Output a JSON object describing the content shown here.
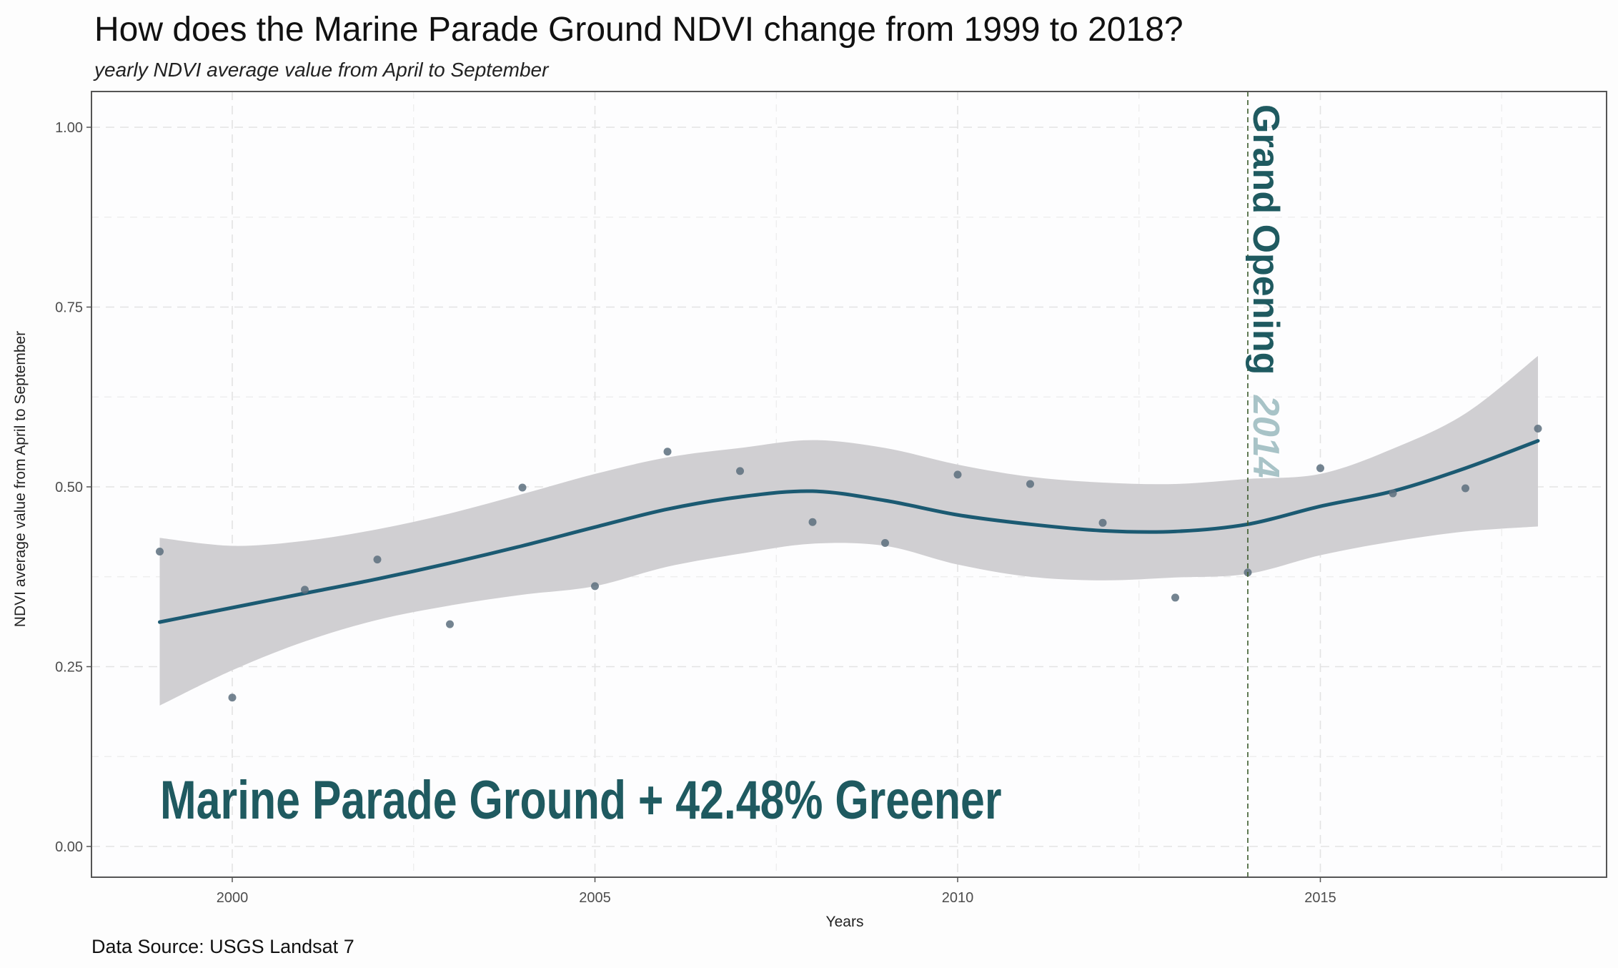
{
  "chart_data": {
    "type": "scatter",
    "title": "How does the Marine Parade Ground NDVI change from 1999 to 2018?",
    "subtitle": "yearly NDVI average value from April to September",
    "xlabel": "Years",
    "ylabel": "NDVI average value from April to September",
    "caption": "Data Source: USGS Landsat 7",
    "xlim": [
      1998.1,
      2018.95
    ],
    "ylim": [
      -0.05,
      1.05
    ],
    "x_ticks": [
      2000,
      2005,
      2010,
      2015
    ],
    "x_tick_labels": [
      "2000",
      "2005",
      "2010",
      "2015"
    ],
    "y_ticks": [
      0,
      0.25,
      0.5,
      0.75,
      1.0
    ],
    "y_tick_labels": [
      "0.00",
      "0.25",
      "0.50",
      "0.75",
      "1.00"
    ],
    "grid": true,
    "legend": "none",
    "series": [
      {
        "name": "NDVI yearly average",
        "kind": "points",
        "color": "#5c6f7e",
        "x": [
          1999,
          2000,
          2001,
          2002,
          2003,
          2004,
          2005,
          2006,
          2007,
          2008,
          2009,
          2010,
          2011,
          2012,
          2013,
          2014,
          2015,
          2016,
          2017,
          2018
        ],
        "y": [
          0.41,
          0.207,
          0.357,
          0.399,
          0.309,
          0.499,
          0.362,
          0.549,
          0.522,
          0.451,
          0.422,
          0.517,
          0.504,
          0.45,
          0.346,
          0.381,
          0.526,
          0.491,
          0.498,
          0.581
        ]
      },
      {
        "name": "LOESS smooth",
        "kind": "line",
        "color": "#1b5a72",
        "x": [
          1999,
          2000,
          2001,
          2002,
          2003,
          2004,
          2005,
          2006,
          2007,
          2008,
          2009,
          2010,
          2011,
          2012,
          2013,
          2014,
          2015,
          2016,
          2017,
          2018
        ],
        "y": [
          0.312,
          0.332,
          0.352,
          0.372,
          0.394,
          0.418,
          0.444,
          0.469,
          0.486,
          0.494,
          0.481,
          0.461,
          0.448,
          0.439,
          0.438,
          0.448,
          0.473,
          0.494,
          0.526,
          0.564
        ]
      },
      {
        "name": "95% confidence band",
        "kind": "ribbon",
        "color": "#d0cfd2",
        "x": [
          1999,
          2000,
          2001,
          2002,
          2003,
          2004,
          2005,
          2006,
          2007,
          2008,
          2009,
          2010,
          2011,
          2012,
          2013,
          2014,
          2015,
          2016,
          2017,
          2018
        ],
        "upper": [
          0.429,
          0.418,
          0.425,
          0.441,
          0.463,
          0.49,
          0.518,
          0.541,
          0.554,
          0.565,
          0.554,
          0.531,
          0.514,
          0.506,
          0.504,
          0.511,
          0.518,
          0.553,
          0.602,
          0.682
        ],
        "lower": [
          0.196,
          0.245,
          0.285,
          0.315,
          0.335,
          0.35,
          0.362,
          0.389,
          0.407,
          0.421,
          0.418,
          0.392,
          0.375,
          0.37,
          0.374,
          0.379,
          0.405,
          0.424,
          0.438,
          0.445
        ]
      }
    ],
    "annotations": [
      {
        "type": "vline",
        "x": 2014,
        "style": "dashed",
        "color": "#3a5a2a"
      },
      {
        "type": "text",
        "text": "Grand Opening",
        "color": "#1f5a60",
        "rotation": "vertical"
      },
      {
        "type": "text",
        "text": "2014",
        "color": "#a8c3c7",
        "rotation": "vertical",
        "italic": true
      },
      {
        "type": "text",
        "text": "Marine Parade Ground + 42.48% Greener",
        "color": "#1f5a60"
      }
    ]
  }
}
